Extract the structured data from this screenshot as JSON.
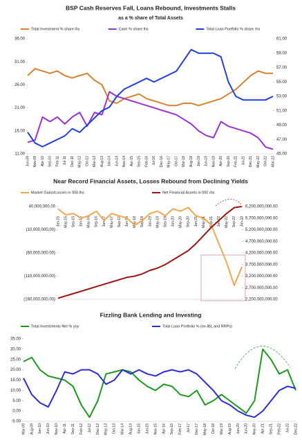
{
  "chart_data": [
    {
      "type": "line",
      "title": "BSP Cash Reserves Fall, Loans Rebound, Investments Stalls",
      "subtitle": "as a % share of Total Assets",
      "categories": [
        "Jun-09",
        "Nov-09",
        "Apr-10",
        "Sep-10",
        "Feb-11",
        "Jul-11",
        "Dec-11",
        "May-12",
        "Oct-12",
        "Mar-13",
        "Aug-13",
        "Jan-14",
        "Jun-14",
        "Nov-14",
        "Apr-15",
        "Sep-15",
        "Feb-16",
        "Jul-16",
        "Dec-16",
        "May-17",
        "Oct-17",
        "Mar-18",
        "Aug-18",
        "Jan-19",
        "Jun-19",
        "Nov-19",
        "Apr-20",
        "Sep-20",
        "Feb-21",
        "Jul-21",
        "Dec-21",
        "May-22",
        "Oct-22",
        "Mar-23"
      ],
      "series": [
        {
          "name": "Total Investment % share lhs",
          "color": "#d9822b",
          "values": [
            28,
            29.5,
            29,
            28.5,
            29,
            28,
            27.5,
            28,
            28.5,
            27,
            26,
            22.5,
            22,
            23,
            23.5,
            24,
            23,
            22.5,
            22,
            21.5,
            21.5,
            22,
            22,
            21.5,
            22,
            22.5,
            23,
            24,
            25,
            26.5,
            28,
            29,
            28.5,
            28.5
          ]
        },
        {
          "name": "Cash % share lhs",
          "color": "#9b30d9",
          "values": [
            13.5,
            14,
            19,
            18,
            19,
            17.5,
            19,
            20,
            17,
            20,
            19.5,
            24.5,
            23.5,
            23,
            22.5,
            22,
            21.5,
            21,
            20.5,
            20,
            19.5,
            18.5,
            17.5,
            16,
            15,
            14.5,
            18,
            17,
            16.5,
            16,
            15.5,
            14.5,
            12.5,
            12
          ]
        },
        {
          "name": "Total Loan Portfolio % share rhs",
          "color": "#1f3fe0",
          "axis": "y2",
          "values": [
            48,
            46.5,
            46,
            46.5,
            47,
            47.5,
            48.5,
            48,
            49,
            50,
            51,
            51.5,
            53,
            54,
            54.5,
            55,
            55.5,
            55,
            55.5,
            56,
            56.5,
            58,
            59.5,
            59,
            59,
            59,
            58.5,
            55,
            53,
            52.5,
            52.5,
            52.5,
            52.5,
            53
          ]
        }
      ],
      "ylim": [
        11,
        36
      ],
      "yticks": [
        {
          "value": 11,
          "label": "11.00"
        },
        {
          "value": 16,
          "label": "16.00"
        },
        {
          "value": 21,
          "label": "21.00"
        },
        {
          "value": 26,
          "label": "26.00"
        },
        {
          "value": 31,
          "label": "31.00"
        },
        {
          "value": 36,
          "label": "36.00"
        }
      ],
      "y2lim": [
        45,
        61
      ],
      "y2ticks": [
        {
          "value": 45,
          "label": "45.00"
        },
        {
          "value": 47,
          "label": "47.00"
        },
        {
          "value": 49,
          "label": "49.00"
        },
        {
          "value": 51,
          "label": "51.00"
        },
        {
          "value": 53,
          "label": "53.00"
        },
        {
          "value": 55,
          "label": "55.00"
        },
        {
          "value": 57,
          "label": "57.00"
        },
        {
          "value": 59,
          "label": "59.00"
        },
        {
          "value": 61,
          "label": "61.00"
        }
      ],
      "grid": false
    },
    {
      "type": "line",
      "title": "Near Record Financial Assets, Losses Rebound from Declining Yields",
      "categories": [
        "Jan-15",
        "May-15",
        "Sep-15",
        "Jan-16",
        "May-16",
        "Sep-16",
        "Jan-17",
        "May-17",
        "Sep-17",
        "Jan-18",
        "May-18",
        "Sep-18",
        "Jan-19",
        "May-19",
        "Sep-19",
        "Jan-20",
        "May-20",
        "Sep-20",
        "Jan-21",
        "May-21",
        "Sep-21",
        "Jan-22",
        "May-22",
        "Sep-22",
        "Jan-23"
      ],
      "series": [
        {
          "name": "Market Gains/Losses in 000 lhs",
          "color": "#f5a54a",
          "values": [
            35000000,
            22000000,
            25000000,
            15000000,
            20000000,
            30000000,
            10000000,
            25000000,
            20000000,
            15000000,
            0,
            10000000,
            25000000,
            30000000,
            20000000,
            35000000,
            30000000,
            38000000,
            20000000,
            15000000,
            0,
            -40000000,
            -80000000,
            -130000000,
            -90000000
          ]
        },
        {
          "name": "Net Financial Assets in 000 rhs",
          "color": "#a01010",
          "axis": "y2",
          "values": [
            2250000000,
            2350000000,
            2450000000,
            2550000000,
            2650000000,
            2750000000,
            2850000000,
            2950000000,
            3050000000,
            3150000000,
            3200000000,
            3300000000,
            3450000000,
            3550000000,
            3700000000,
            3900000000,
            4100000000,
            4300000000,
            4600000000,
            4950000000,
            5300000000,
            5600000000,
            5900000000,
            6150000000,
            6200000000
          ]
        }
      ],
      "ylim": [
        -160000000,
        40000000
      ],
      "yticks": [
        {
          "value": -160000000,
          "label": "(160,000,000.00)"
        },
        {
          "value": -110000000,
          "label": "(110,000,000.00)"
        },
        {
          "value": -60000000,
          "label": "(60,000,000.00)"
        },
        {
          "value": -10000000,
          "label": "(10,000,000.00)"
        },
        {
          "value": 40000000,
          "label": "40,000,000.00"
        }
      ],
      "y2lim": [
        2200000000,
        6200000000
      ],
      "y2ticks": [
        {
          "value": 2200000000,
          "label": "2,200,000,000.00"
        },
        {
          "value": 2700000000,
          "label": "2,700,000,000.00"
        },
        {
          "value": 3200000000,
          "label": "3,200,000,000.00"
        },
        {
          "value": 3700000000,
          "label": "3,700,000,000.00"
        },
        {
          "value": 4200000000,
          "label": "4,200,000,000.00"
        },
        {
          "value": 4700000000,
          "label": "4,700,000,000.00"
        },
        {
          "value": 5200000000,
          "label": "5,200,000,000.00"
        },
        {
          "value": 5700000000,
          "label": "5,700,000,000.00"
        },
        {
          "value": 6200000000,
          "label": "6,200,000,000.00"
        }
      ],
      "grid": false
    },
    {
      "type": "line",
      "title": "Fizzling Bank Lending and Investing",
      "categories": [
        "Mar-09",
        "Aug-09",
        "Jan-10",
        "Jun-10",
        "Nov-10",
        "Apr-11",
        "Sep-11",
        "Feb-12",
        "Jul-12",
        "Dec-12",
        "May-13",
        "Oct-13",
        "Mar-14",
        "Aug-14",
        "Jan-15",
        "Jun-15",
        "Nov-15",
        "Apr-16",
        "Sep-16",
        "Feb-17",
        "Jul-17",
        "Dec-17",
        "May-18",
        "Oct-18",
        "Mar-19",
        "Aug-19",
        "Jan-20",
        "Jun-20",
        "Nov-20",
        "Apr-21",
        "Sep-21",
        "Feb-22",
        "Jul-22",
        "Dec-22"
      ],
      "series": [
        {
          "name": "Total Investments Net % yoy",
          "color": "#1a9a1a",
          "values": [
            24,
            26,
            20,
            17,
            16,
            15,
            12,
            3,
            -3,
            5,
            18,
            19,
            20,
            19,
            15,
            12,
            10,
            13,
            12,
            8,
            7,
            10,
            3,
            5,
            8,
            5,
            2,
            -1,
            5,
            30,
            25,
            18,
            20,
            10
          ]
        },
        {
          "name": "Total Loan Portfolio % (ex-IBL and RRPs)",
          "color": "#2a2ae0",
          "values": [
            16,
            8,
            4,
            2,
            10,
            19,
            18,
            20,
            20,
            18,
            13,
            15,
            20,
            18,
            20,
            18,
            17,
            19,
            20,
            19,
            20,
            18,
            14,
            10,
            5,
            3,
            0,
            -2,
            -3,
            0,
            5,
            10,
            12,
            11
          ]
        }
      ],
      "ylim": [
        -5,
        35
      ],
      "yticks": [
        {
          "value": -5,
          "label": "-5.00"
        },
        {
          "value": 0,
          "label": "0.00"
        },
        {
          "value": 5,
          "label": "5.00"
        },
        {
          "value": 10,
          "label": "10.00"
        },
        {
          "value": 15,
          "label": "15.00"
        },
        {
          "value": 20,
          "label": "20.00"
        },
        {
          "value": 25,
          "label": "25.00"
        },
        {
          "value": 30,
          "label": "30.00"
        },
        {
          "value": 35,
          "label": "35.00"
        }
      ],
      "grid": false
    }
  ]
}
